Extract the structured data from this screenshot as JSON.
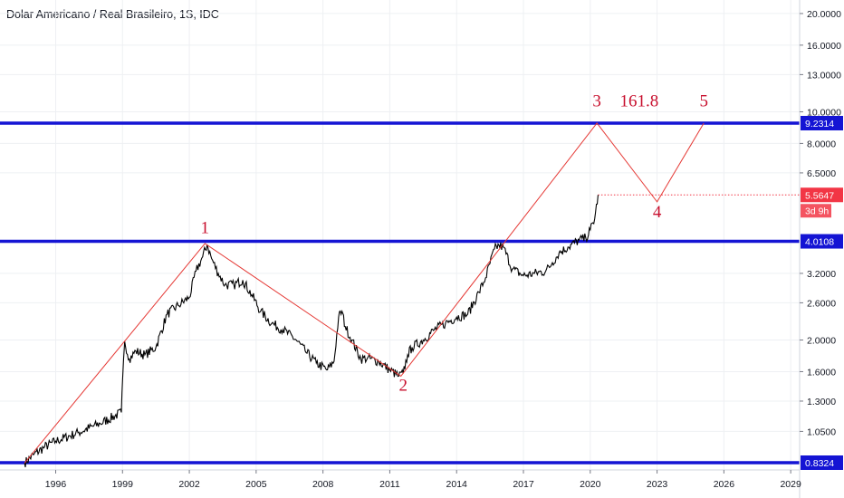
{
  "header": {
    "title": "Dolar Americano / Real Brasileiro, 1S, IDC"
  },
  "colors": {
    "price": "#000000",
    "wave": "#e53935",
    "hline": "#1414d4",
    "label_red": "#c8102e",
    "price_badge": "#f23645",
    "grid": "#eef0f3"
  },
  "chart_data": {
    "type": "line",
    "yscale": "log",
    "ylim": [
      0.8,
      22.0
    ],
    "xlim": [
      1993.5,
      2029.4
    ],
    "xticks": [
      "1996",
      "1999",
      "2002",
      "2005",
      "2008",
      "2011",
      "2014",
      "2017",
      "2020",
      "2023",
      "2026",
      "2029"
    ],
    "yticks": [
      "20.0000",
      "16.0000",
      "13.0000",
      "10.0000",
      "8.0000",
      "6.5000",
      "3.2000",
      "2.6000",
      "2.0000",
      "1.6000",
      "1.3000",
      "1.0500"
    ],
    "horizontal_lines": [
      {
        "value": 9.2314,
        "label": "9.2314"
      },
      {
        "value": 4.0108,
        "label": "4.0108"
      },
      {
        "value": 0.8324,
        "label": "0.8324"
      }
    ],
    "current_price": {
      "value": 5.5647,
      "label": "5.5647",
      "countdown": "3d 9h"
    },
    "wave_projection": {
      "points": [
        {
          "x": 1994.6,
          "y": 0.84
        },
        {
          "x": 2002.7,
          "y": 3.95
        },
        {
          "x": 2011.5,
          "y": 1.55
        },
        {
          "x": 2020.3,
          "y": 9.2314
        },
        {
          "x": 2023.0,
          "y": 5.3
        },
        {
          "x": 2025.1,
          "y": 9.2314
        }
      ]
    },
    "wave_labels": [
      {
        "text": "1",
        "x": 2002.7,
        "y": 4.25
      },
      {
        "text": "2",
        "x": 2011.6,
        "y": 1.4
      },
      {
        "text": "3",
        "x": 2020.3,
        "y": 10.4
      },
      {
        "text": "4",
        "x": 2023.0,
        "y": 4.75
      },
      {
        "text": "5",
        "x": 2025.1,
        "y": 10.4
      }
    ],
    "fib_label": {
      "text": "161.8",
      "x": 2022.2,
      "y": 10.4
    },
    "price_series": {
      "x": [
        1994.6,
        1995.0,
        1995.5,
        1996.0,
        1997.0,
        1998.0,
        1998.95,
        1999.0,
        1999.1,
        1999.3,
        1999.6,
        2000.0,
        2000.5,
        2001.0,
        2001.5,
        2002.0,
        2002.3,
        2002.6,
        2002.8,
        2003.0,
        2003.3,
        2003.6,
        2004.0,
        2004.4,
        2004.8,
        2005.2,
        2005.7,
        2006.2,
        2006.8,
        2007.2,
        2007.7,
        2008.2,
        2008.5,
        2008.7,
        2008.85,
        2009.0,
        2009.3,
        2009.7,
        2010.0,
        2010.5,
        2011.0,
        2011.4,
        2011.6,
        2011.8,
        2012.0,
        2012.5,
        2013.0,
        2013.5,
        2014.0,
        2014.5,
        2015.0,
        2015.3,
        2015.7,
        2015.9,
        2016.1,
        2016.5,
        2017.0,
        2017.5,
        2018.0,
        2018.3,
        2018.6,
        2019.0,
        2019.5,
        2019.8,
        2020.0,
        2020.2,
        2020.35
      ],
      "y": [
        0.84,
        0.89,
        0.94,
        0.98,
        1.04,
        1.11,
        1.2,
        1.5,
        1.98,
        1.75,
        1.85,
        1.8,
        1.9,
        2.4,
        2.55,
        2.7,
        3.25,
        3.6,
        3.92,
        3.55,
        3.2,
        2.95,
        2.95,
        3.05,
        2.75,
        2.45,
        2.25,
        2.15,
        2.0,
        1.85,
        1.7,
        1.62,
        1.72,
        2.35,
        2.45,
        2.2,
        2.0,
        1.75,
        1.76,
        1.72,
        1.62,
        1.55,
        1.58,
        1.8,
        1.9,
        2.0,
        2.15,
        2.25,
        2.35,
        2.4,
        2.8,
        3.1,
        3.8,
        3.9,
        3.85,
        3.3,
        3.15,
        3.2,
        3.25,
        3.45,
        3.7,
        3.85,
        4.05,
        4.1,
        4.35,
        4.7,
        5.5647
      ]
    }
  }
}
